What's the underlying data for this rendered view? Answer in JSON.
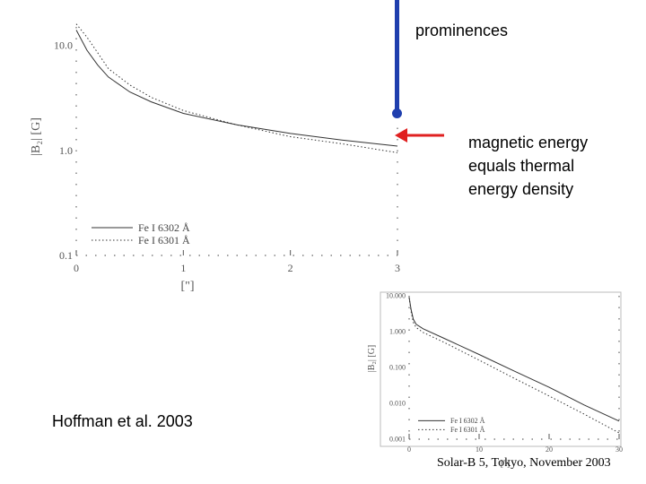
{
  "slide": {
    "callout_top": "prominences",
    "callout_right": [
      "magnetic energy",
      "equals thermal",
      "energy density"
    ],
    "citation": "Hoffman et al. 2003",
    "footer": "Solar-B 5, Tokyo, November 2003",
    "colors": {
      "blue_bar": "#1f3fae",
      "red_arrow": "#e02020"
    }
  },
  "chart_data": [
    {
      "type": "line",
      "xlabel": "[\"]",
      "ylabel": "|B₂| [G]",
      "y_scale": "log",
      "xlim": [
        0,
        3
      ],
      "ylim": [
        0.1,
        15
      ],
      "x_ticks": [
        "0",
        "1",
        "2",
        "3"
      ],
      "y_ticks": [
        "0.1",
        "1.0",
        "10.0"
      ],
      "legend_position": "bottom-left",
      "series": [
        {
          "name": "Fe I 6302 Å",
          "style": "solid",
          "x": [
            0,
            0.1,
            0.2,
            0.3,
            0.5,
            0.7,
            1.0,
            1.5,
            2.0,
            2.5,
            3.0
          ],
          "y": [
            14,
            9,
            6.5,
            5.0,
            3.6,
            2.9,
            2.25,
            1.75,
            1.45,
            1.25,
            1.1
          ]
        },
        {
          "name": "Fe I 6301 Å",
          "style": "dotted",
          "x": [
            0,
            0.1,
            0.2,
            0.3,
            0.5,
            0.7,
            1.0,
            1.5,
            2.0,
            2.5,
            3.0
          ],
          "y": [
            16,
            12,
            8.5,
            6.0,
            4.2,
            3.2,
            2.4,
            1.75,
            1.35,
            1.15,
            0.95
          ]
        }
      ]
    },
    {
      "type": "line",
      "xlabel": "[\"]",
      "ylabel": "|B₂| [G]",
      "y_scale": "log",
      "xlim": [
        0,
        30
      ],
      "ylim": [
        0.001,
        10
      ],
      "x_ticks": [
        "0",
        "10",
        "20",
        "30"
      ],
      "y_ticks": [
        "0.001",
        "0.010",
        "0.100",
        "1.000",
        "10.000"
      ],
      "legend_position": "bottom-left",
      "series": [
        {
          "name": "Fe I 6302 Å",
          "style": "solid",
          "x": [
            0,
            0.3,
            0.6,
            1,
            2,
            5,
            10,
            15,
            20,
            25,
            30
          ],
          "y": [
            9,
            4,
            2.2,
            1.6,
            1.2,
            0.65,
            0.23,
            0.08,
            0.028,
            0.009,
            0.0032
          ]
        },
        {
          "name": "Fe I 6301 Å",
          "style": "dotted",
          "x": [
            0,
            0.3,
            0.6,
            1,
            2,
            5,
            10,
            15,
            20,
            25,
            30
          ],
          "y": [
            9,
            3.5,
            1.8,
            1.3,
            0.95,
            0.5,
            0.16,
            0.05,
            0.016,
            0.005,
            0.0015
          ]
        }
      ]
    }
  ]
}
